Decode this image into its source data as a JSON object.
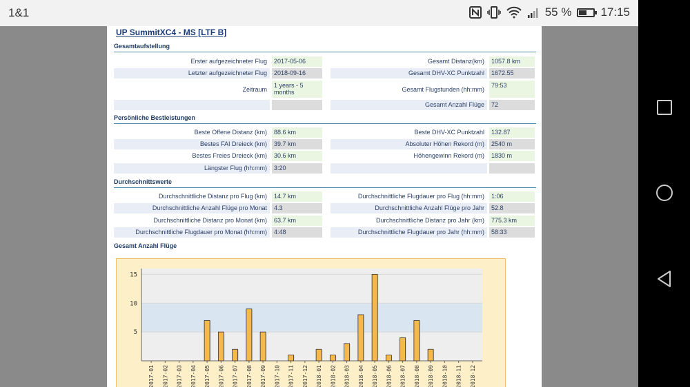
{
  "statusbar": {
    "carrier": "1&1",
    "battery_percent": "55 %",
    "battery_level": 0.55,
    "time": "17:15",
    "icons": [
      "nfc-icon",
      "vibrate-icon",
      "wifi-icon",
      "signal-icon",
      "battery-icon"
    ]
  },
  "navbar": {
    "icons": [
      "recents-square-icon",
      "home-circle-icon",
      "back-triangle-icon"
    ]
  },
  "page": {
    "title": "UP SummitXC4 - MS [LTF B]",
    "sections": {
      "overview": "Gesamtaufstellung",
      "personal_best": "Persönliche Bestleistungen",
      "averages": "Durchschnittswerte",
      "total_flights": "Gesamt Anzahl Flüge"
    },
    "overview": {
      "left": [
        {
          "label": "Erster aufgezeichneter Flug",
          "value": "2017-05-06"
        },
        {
          "label": "Letzter aufgezeichneter Flug",
          "value": "2018-09-16"
        },
        {
          "label": "Zeitraum",
          "value": "1 years - 5 months"
        },
        {
          "label": "",
          "value": ""
        }
      ],
      "right": [
        {
          "label": "Gesamt Distanz(km)",
          "value": "1057.8 km"
        },
        {
          "label": "Gesamt DHV-XC Punktzahl",
          "value": "1672.55"
        },
        {
          "label": "Gesamt Flugstunden (hh:mm)",
          "value": "79:53"
        },
        {
          "label": "Gesamt Anzahl Flüge",
          "value": "72"
        }
      ]
    },
    "personal_best": {
      "left": [
        {
          "label": "Beste Offene Distanz (km)",
          "value": "88.6 km"
        },
        {
          "label": "Bestes FAI Dreieck (km)",
          "value": "39.7 km"
        },
        {
          "label": "Bestes Freies Dreieck (km)",
          "value": "30.6 km"
        },
        {
          "label": "Längster Flug (hh:mm)",
          "value": "3:20"
        }
      ],
      "right": [
        {
          "label": "Beste DHV-XC Punktzahl",
          "value": "132.87"
        },
        {
          "label": "Absoluter Höhen Rekord (m)",
          "value": "2540 m"
        },
        {
          "label": "Höhengewinn Rekord (m)",
          "value": "1830 m"
        },
        {
          "label": "",
          "value": ""
        }
      ]
    },
    "averages": {
      "left": [
        {
          "label": "Durchschnittliche Distanz pro Flug (km)",
          "value": "14.7 km"
        },
        {
          "label": "Durchschnittliche Anzahl Flüge pro Monat",
          "value": "4.3"
        },
        {
          "label": "Durchschnittliche Distanz pro Monat (km)",
          "value": "63.7 km"
        },
        {
          "label": "Durchschnittliche Flugdauer pro Monat (hh:mm)",
          "value": "4:48"
        }
      ],
      "right": [
        {
          "label": "Durchschnittliche Flugdauer pro Flug (hh:mm)",
          "value": "1:06"
        },
        {
          "label": "Durchschnittliche Anzahl Flüge pro Jahr",
          "value": "52.8"
        },
        {
          "label": "Durchschnittliche Distanz pro Jahr (km)",
          "value": "775.3 km"
        },
        {
          "label": "Durchschnittliche Flugdauer pro Jahr (hh:mm)",
          "value": "58:33"
        }
      ]
    }
  },
  "chart_data": {
    "type": "bar",
    "title": "",
    "xlabel": "",
    "ylabel": "",
    "ylim": [
      0,
      16
    ],
    "yticks": [
      5,
      10,
      15
    ],
    "bar_color": "#f5b84a",
    "categories": [
      "2017-01",
      "2017-02",
      "2017-03",
      "2017-04",
      "2017-05",
      "2017-06",
      "2017-07",
      "2017-08",
      "2017-09",
      "2017-10",
      "2017-11",
      "2017-12",
      "2018-01",
      "2018-02",
      "2018-03",
      "2018-04",
      "2018-05",
      "2018-06",
      "2018-07",
      "2018-08",
      "2018-09",
      "2018-10",
      "2018-11",
      "2018-12"
    ],
    "values": [
      0,
      0,
      0,
      0,
      7,
      5,
      2,
      9,
      5,
      0,
      1,
      0,
      2,
      1,
      3,
      8,
      15,
      1,
      4,
      7,
      2,
      0,
      0,
      0
    ]
  }
}
